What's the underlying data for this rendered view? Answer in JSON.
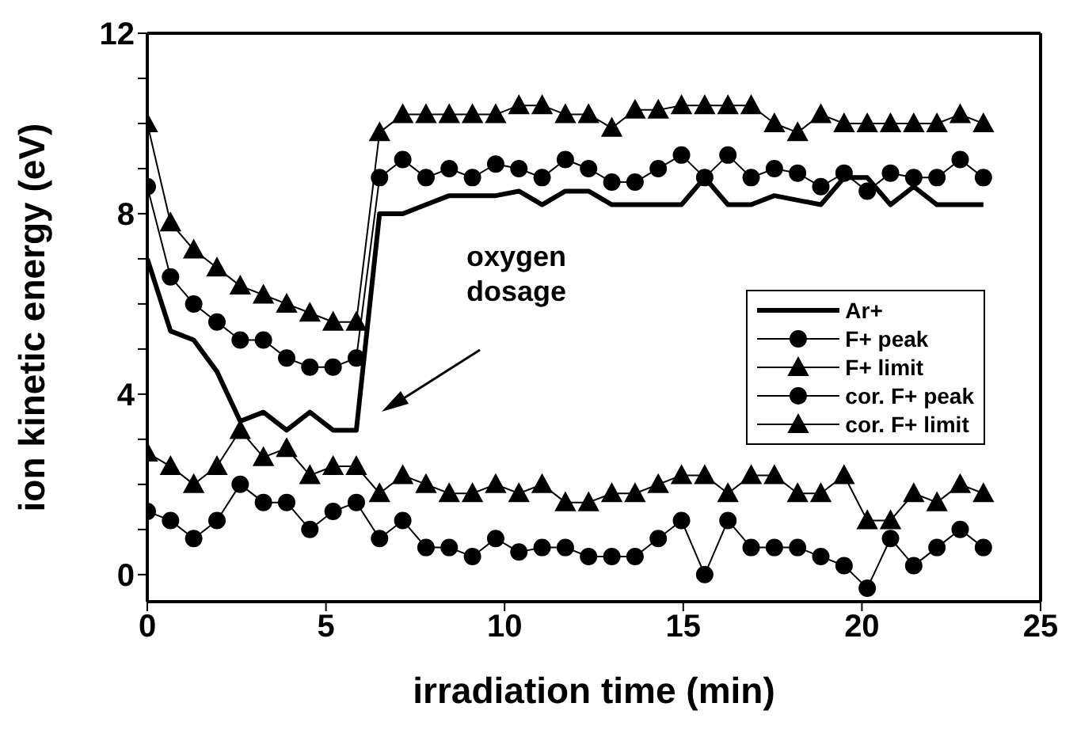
{
  "chart_data": {
    "type": "line",
    "xlabel": "irradiation time (min)",
    "ylabel": "ion kinetic energy (eV)",
    "x": [
      0,
      0.65,
      1.3,
      1.95,
      2.6,
      3.25,
      3.9,
      4.55,
      5.2,
      5.85,
      6.5,
      7.15,
      7.8,
      8.45,
      9.1,
      9.75,
      10.4,
      11.05,
      11.7,
      12.35,
      13,
      13.65,
      14.3,
      14.95,
      15.6,
      16.25,
      16.9,
      17.55,
      18.2,
      18.85,
      19.5,
      20.15,
      20.8,
      21.45,
      22.1,
      22.75,
      23.4
    ],
    "series": [
      {
        "name": "Ar+",
        "color": "#000000",
        "marker": "none",
        "values": [
          7.0,
          5.4,
          5.2,
          4.5,
          3.4,
          3.6,
          3.2,
          3.6,
          3.2,
          3.2,
          8.0,
          8.0,
          8.2,
          8.4,
          8.4,
          8.4,
          8.5,
          8.2,
          8.5,
          8.5,
          8.2,
          8.2,
          8.2,
          8.2,
          8.8,
          8.2,
          8.2,
          8.4,
          8.3,
          8.2,
          8.8,
          8.8,
          8.2,
          8.6,
          8.2,
          8.2,
          8.2
        ]
      },
      {
        "name": "F+ peak",
        "color": "#000000",
        "marker": "circle",
        "values": [
          8.6,
          6.6,
          6.0,
          5.6,
          5.2,
          5.2,
          4.8,
          4.6,
          4.6,
          4.8,
          8.8,
          9.2,
          8.8,
          9.0,
          8.8,
          9.1,
          9.0,
          8.8,
          9.2,
          9.0,
          8.7,
          8.7,
          9.0,
          9.3,
          8.8,
          9.3,
          8.8,
          9.0,
          8.9,
          8.6,
          8.9,
          8.5,
          8.9,
          8.8,
          8.8,
          9.2,
          8.8
        ]
      },
      {
        "name": "F+ limit",
        "color": "#000000",
        "marker": "triangle",
        "values": [
          10.0,
          7.8,
          7.2,
          6.8,
          6.4,
          6.2,
          6.0,
          5.8,
          5.6,
          5.6,
          9.8,
          10.2,
          10.2,
          10.2,
          10.2,
          10.2,
          10.4,
          10.4,
          10.2,
          10.2,
          9.9,
          10.3,
          10.3,
          10.4,
          10.4,
          10.4,
          10.4,
          10.0,
          9.8,
          10.2,
          10.0,
          10.0,
          10.0,
          10.0,
          10.0,
          10.2,
          10.0
        ]
      },
      {
        "name": "cor. F+ peak",
        "color": "#000000",
        "marker": "circle",
        "values": [
          1.4,
          1.2,
          0.8,
          1.2,
          2.0,
          1.6,
          1.6,
          1.0,
          1.4,
          1.6,
          0.8,
          1.2,
          0.6,
          0.6,
          0.4,
          0.8,
          0.5,
          0.6,
          0.6,
          0.4,
          0.4,
          0.4,
          0.8,
          1.2,
          0.0,
          1.2,
          0.6,
          0.6,
          0.6,
          0.4,
          0.2,
          -0.3,
          0.8,
          0.2,
          0.6,
          1.0,
          0.6
        ]
      },
      {
        "name": "cor. F+ limit",
        "color": "#000000",
        "marker": "triangle",
        "values": [
          2.7,
          2.4,
          2.0,
          2.4,
          3.2,
          2.6,
          2.8,
          2.2,
          2.4,
          2.4,
          1.8,
          2.2,
          2.0,
          1.8,
          1.8,
          2.0,
          1.8,
          2.0,
          1.6,
          1.6,
          1.8,
          1.8,
          2.0,
          2.2,
          2.2,
          1.8,
          2.2,
          2.2,
          1.8,
          1.8,
          2.2,
          1.2,
          1.2,
          1.8,
          1.6,
          2.0,
          1.8
        ]
      }
    ],
    "xlim": [
      0,
      25
    ],
    "xticks": [
      0,
      5,
      10,
      15,
      20,
      25
    ],
    "ylim": [
      -0.6,
      12
    ],
    "yticks": [
      0,
      {
        "value": 1,
        "label": null
      },
      {
        "value": 2,
        "label": null
      },
      {
        "value": 3,
        "label": null
      },
      4,
      {
        "value": 5,
        "label": null
      },
      {
        "value": 6,
        "label": null
      },
      {
        "value": 7,
        "label": null
      },
      8,
      {
        "value": 9,
        "label": null
      },
      {
        "value": 10,
        "label": null
      },
      {
        "value": 11,
        "label": null
      },
      12
    ],
    "annotations": [
      "oxygen dosage"
    ],
    "legend": "right",
    "grid": false
  }
}
